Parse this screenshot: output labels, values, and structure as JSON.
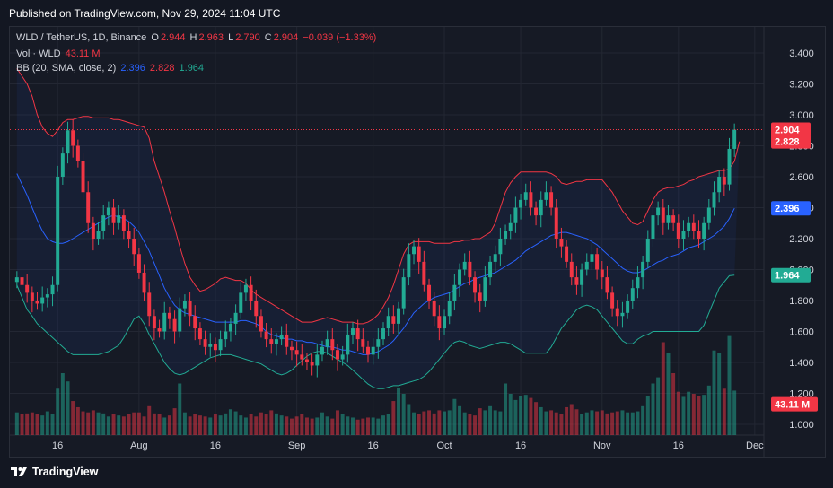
{
  "published": "Published on TradingView.com, Nov 29, 2024 11:04 UTC",
  "footer": {
    "brand": "TradingView"
  },
  "legend": {
    "symbol": "WLD / TetherUS, 1D, Binance",
    "o_label": "O",
    "o_value": "2.944",
    "h_label": "H",
    "h_value": "2.963",
    "l_label": "L",
    "l_value": "2.790",
    "c_label": "C",
    "c_value": "2.904",
    "change": "−0.039 (−1.33%)",
    "vol_label": "Vol · WLD",
    "vol_value": "43.11 M",
    "bb_label": "BB (20, SMA, close, 2)",
    "bb_basis": "2.396",
    "bb_upper": "2.828",
    "bb_lower": "1.964"
  },
  "colors": {
    "background": "#131722",
    "up": "#22ab94",
    "down": "#f23645",
    "basis": "#2962ff",
    "upper_band": "#f23645",
    "lower_band": "#22ab94",
    "grid": "#232733",
    "text": "#d1d4dc"
  },
  "chart_data": {
    "type": "candlestick",
    "y_ticks": [
      "3.400",
      "3.200",
      "3.000",
      "2.800",
      "2.600",
      "2.400",
      "2.200",
      "2.000",
      "1.800",
      "1.600",
      "1.400",
      "1.200",
      "1.000"
    ],
    "ylim": [
      1.0,
      3.4
    ],
    "x_ticks": [
      {
        "label": "16",
        "index": 8
      },
      {
        "label": "Aug",
        "index": 24
      },
      {
        "label": "16",
        "index": 39
      },
      {
        "label": "Sep",
        "index": 55
      },
      {
        "label": "16",
        "index": 70
      },
      {
        "label": "Oct",
        "index": 84
      },
      {
        "label": "16",
        "index": 99
      },
      {
        "label": "Nov",
        "index": 115
      },
      {
        "label": "16",
        "index": 130
      },
      {
        "label": "Dec",
        "index": 145
      }
    ],
    "price_labels": [
      {
        "name": "last-price",
        "value": "2.904",
        "y": 2.904,
        "color": "#f23645"
      },
      {
        "name": "bb-upper",
        "value": "2.828",
        "y": 2.828,
        "color": "#f23645"
      },
      {
        "name": "bb-basis",
        "value": "2.396",
        "y": 2.396,
        "color": "#2962ff"
      },
      {
        "name": "bb-lower",
        "value": "1.964",
        "y": 1.964,
        "color": "#22ab94"
      },
      {
        "name": "volume",
        "value": "43.11 M",
        "y": 1.13,
        "color": "#f23645"
      }
    ],
    "last_close": 2.904,
    "close": [
      1.95,
      1.9,
      1.85,
      1.8,
      1.78,
      1.82,
      1.84,
      1.9,
      2.6,
      2.75,
      2.9,
      2.8,
      2.7,
      2.5,
      2.3,
      2.2,
      2.25,
      2.35,
      2.4,
      2.3,
      2.35,
      2.25,
      2.2,
      2.1,
      1.98,
      1.85,
      1.7,
      1.62,
      1.6,
      1.72,
      1.68,
      1.6,
      1.75,
      1.8,
      1.7,
      1.62,
      1.55,
      1.5,
      1.52,
      1.48,
      1.55,
      1.6,
      1.65,
      1.72,
      1.85,
      1.9,
      1.8,
      1.7,
      1.6,
      1.55,
      1.52,
      1.55,
      1.58,
      1.5,
      1.48,
      1.45,
      1.42,
      1.4,
      1.38,
      1.45,
      1.5,
      1.55,
      1.48,
      1.42,
      1.45,
      1.58,
      1.62,
      1.55,
      1.5,
      1.45,
      1.5,
      1.55,
      1.62,
      1.7,
      1.65,
      1.75,
      1.95,
      2.1,
      2.15,
      2.05,
      1.9,
      1.8,
      1.7,
      1.62,
      1.7,
      1.8,
      1.9,
      2.0,
      2.05,
      1.95,
      1.85,
      1.8,
      1.95,
      2.05,
      2.1,
      2.2,
      2.25,
      2.3,
      2.4,
      2.45,
      2.5,
      2.4,
      2.35,
      2.45,
      2.5,
      2.4,
      2.2,
      2.15,
      2.05,
      1.95,
      1.9,
      2.0,
      2.05,
      2.1,
      2.0,
      1.95,
      1.85,
      1.75,
      1.7,
      1.72,
      1.8,
      1.88,
      1.95,
      2.05,
      2.2,
      2.35,
      2.4,
      2.3,
      2.35,
      2.3,
      2.2,
      2.25,
      2.3,
      2.25,
      2.2,
      2.3,
      2.4,
      2.5,
      2.6,
      2.55,
      2.78,
      2.904
    ],
    "bb_basis": [
      2.62,
      2.55,
      2.48,
      2.4,
      2.32,
      2.25,
      2.2,
      2.18,
      2.17,
      2.17,
      2.18,
      2.2,
      2.22,
      2.24,
      2.26,
      2.28,
      2.3,
      2.32,
      2.34,
      2.35,
      2.34,
      2.33,
      2.31,
      2.28,
      2.24,
      2.18,
      2.12,
      2.04,
      1.96,
      1.88,
      1.82,
      1.77,
      1.74,
      1.72,
      1.71,
      1.7,
      1.69,
      1.68,
      1.67,
      1.66,
      1.66,
      1.66,
      1.66,
      1.66,
      1.67,
      1.67,
      1.66,
      1.65,
      1.63,
      1.6,
      1.58,
      1.57,
      1.56,
      1.55,
      1.55,
      1.54,
      1.54,
      1.53,
      1.53,
      1.52,
      1.51,
      1.5,
      1.5,
      1.49,
      1.48,
      1.48,
      1.47,
      1.46,
      1.45,
      1.45,
      1.46,
      1.47,
      1.49,
      1.51,
      1.54,
      1.58,
      1.62,
      1.67,
      1.72,
      1.75,
      1.78,
      1.8,
      1.82,
      1.83,
      1.84,
      1.85,
      1.87,
      1.89,
      1.91,
      1.92,
      1.94,
      1.95,
      1.96,
      1.97,
      1.98,
      2.0,
      2.02,
      2.04,
      2.06,
      2.09,
      2.12,
      2.14,
      2.16,
      2.18,
      2.2,
      2.22,
      2.23,
      2.24,
      2.24,
      2.23,
      2.22,
      2.21,
      2.2,
      2.18,
      2.16,
      2.13,
      2.1,
      2.07,
      2.04,
      2.01,
      1.99,
      1.98,
      1.98,
      1.99,
      2.01,
      2.03,
      2.05,
      2.06,
      2.08,
      2.09,
      2.1,
      2.12,
      2.14,
      2.15,
      2.16,
      2.18,
      2.2,
      2.22,
      2.25,
      2.28,
      2.33,
      2.396
    ],
    "bb_upper": [
      3.3,
      3.25,
      3.2,
      3.12,
      3.0,
      2.92,
      2.88,
      2.86,
      2.9,
      2.95,
      2.97,
      2.97,
      2.98,
      2.99,
      2.99,
      2.98,
      2.98,
      2.98,
      2.98,
      2.97,
      2.97,
      2.96,
      2.95,
      2.94,
      2.93,
      2.92,
      2.85,
      2.7,
      2.6,
      2.5,
      2.38,
      2.27,
      2.15,
      2.04,
      1.95,
      1.9,
      1.86,
      1.87,
      1.89,
      1.91,
      1.94,
      1.95,
      1.94,
      1.93,
      1.93,
      1.91,
      1.87,
      1.84,
      1.82,
      1.8,
      1.78,
      1.76,
      1.74,
      1.72,
      1.7,
      1.68,
      1.66,
      1.66,
      1.66,
      1.67,
      1.68,
      1.69,
      1.68,
      1.67,
      1.66,
      1.66,
      1.66,
      1.65,
      1.65,
      1.66,
      1.68,
      1.71,
      1.76,
      1.82,
      1.9,
      2.0,
      2.1,
      2.16,
      2.18,
      2.18,
      2.18,
      2.18,
      2.17,
      2.17,
      2.17,
      2.17,
      2.18,
      2.18,
      2.19,
      2.19,
      2.2,
      2.2,
      2.22,
      2.24,
      2.3,
      2.4,
      2.5,
      2.56,
      2.6,
      2.63,
      2.63,
      2.63,
      2.63,
      2.63,
      2.63,
      2.62,
      2.6,
      2.56,
      2.55,
      2.56,
      2.57,
      2.57,
      2.58,
      2.58,
      2.58,
      2.58,
      2.54,
      2.5,
      2.44,
      2.38,
      2.34,
      2.3,
      2.29,
      2.31,
      2.38,
      2.45,
      2.5,
      2.52,
      2.53,
      2.53,
      2.54,
      2.55,
      2.57,
      2.58,
      2.6,
      2.61,
      2.62,
      2.63,
      2.64,
      2.64,
      2.65,
      2.7,
      2.828
    ],
    "bb_lower": [
      1.9,
      1.82,
      1.74,
      1.7,
      1.65,
      1.62,
      1.59,
      1.56,
      1.53,
      1.5,
      1.47,
      1.45,
      1.45,
      1.45,
      1.45,
      1.45,
      1.45,
      1.46,
      1.47,
      1.49,
      1.51,
      1.56,
      1.62,
      1.68,
      1.7,
      1.65,
      1.58,
      1.52,
      1.46,
      1.4,
      1.36,
      1.33,
      1.32,
      1.33,
      1.35,
      1.37,
      1.39,
      1.41,
      1.43,
      1.44,
      1.45,
      1.45,
      1.45,
      1.44,
      1.43,
      1.42,
      1.41,
      1.4,
      1.39,
      1.37,
      1.35,
      1.33,
      1.32,
      1.33,
      1.35,
      1.38,
      1.41,
      1.44,
      1.46,
      1.47,
      1.47,
      1.46,
      1.44,
      1.42,
      1.4,
      1.38,
      1.35,
      1.32,
      1.29,
      1.26,
      1.24,
      1.23,
      1.23,
      1.24,
      1.25,
      1.25,
      1.26,
      1.27,
      1.28,
      1.29,
      1.31,
      1.34,
      1.38,
      1.42,
      1.46,
      1.5,
      1.53,
      1.54,
      1.53,
      1.51,
      1.5,
      1.49,
      1.5,
      1.51,
      1.52,
      1.53,
      1.53,
      1.52,
      1.5,
      1.48,
      1.46,
      1.46,
      1.46,
      1.46,
      1.46,
      1.5,
      1.56,
      1.62,
      1.66,
      1.7,
      1.74,
      1.76,
      1.77,
      1.76,
      1.74,
      1.7,
      1.66,
      1.62,
      1.58,
      1.54,
      1.52,
      1.52,
      1.55,
      1.57,
      1.58,
      1.6,
      1.6,
      1.6,
      1.6,
      1.6,
      1.6,
      1.6,
      1.6,
      1.6,
      1.6,
      1.64,
      1.72,
      1.8,
      1.88,
      1.92,
      1.96,
      1.964
    ],
    "volume_m": [
      22,
      20,
      21,
      22,
      20,
      19,
      23,
      20,
      45,
      60,
      52,
      33,
      27,
      23,
      22,
      24,
      22,
      21,
      18,
      20,
      19,
      18,
      20,
      22,
      22,
      18,
      28,
      21,
      20,
      17,
      19,
      26,
      50,
      22,
      18,
      20,
      19,
      18,
      17,
      20,
      19,
      21,
      25,
      23,
      19,
      17,
      20,
      18,
      22,
      20,
      24,
      21,
      19,
      18,
      16,
      18,
      20,
      17,
      16,
      17,
      22,
      18,
      16,
      24,
      20,
      18,
      17,
      15,
      16,
      17,
      17,
      16,
      19,
      20,
      33,
      46,
      40,
      30,
      22,
      20,
      23,
      24,
      21,
      24,
      23,
      24,
      35,
      28,
      22,
      20,
      19,
      26,
      24,
      28,
      24,
      23,
      50,
      40,
      34,
      38,
      39,
      36,
      32,
      27,
      23,
      24,
      22,
      20,
      27,
      30,
      25,
      20,
      22,
      24,
      23,
      24,
      21,
      22,
      23,
      24,
      22,
      22,
      23,
      28,
      38,
      50,
      56,
      90,
      80,
      60,
      42,
      37,
      42,
      40,
      38,
      39,
      48,
      82,
      80,
      45,
      96,
      43.11
    ]
  }
}
